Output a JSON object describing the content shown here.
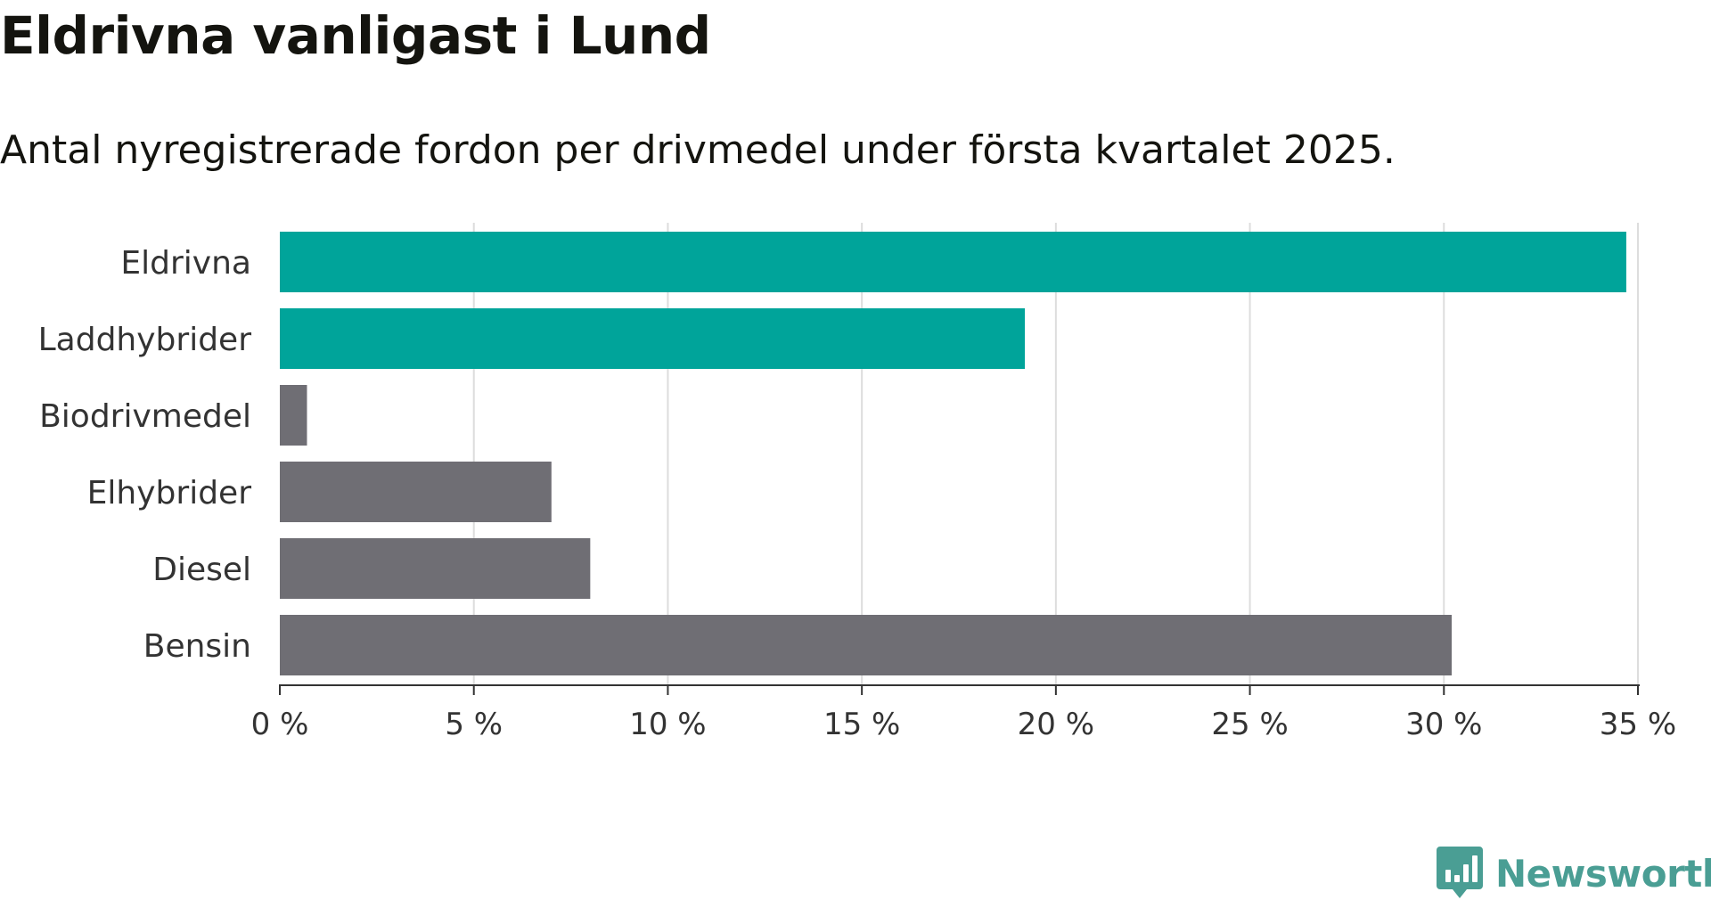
{
  "header": {
    "title": "Eldrivna vanligast i Lund",
    "subtitle": "Antal nyregistrerade fordon per drivmedel under första kvartalet 2025."
  },
  "brand": {
    "name": "Newsworthy",
    "color": "#4a9e94",
    "icon": "chat-bar-chart-icon"
  },
  "chart_data": {
    "type": "bar",
    "orientation": "horizontal",
    "categories": [
      "Eldrivna",
      "Laddhybrider",
      "Biodrivmedel",
      "Elhybrider",
      "Diesel",
      "Bensin"
    ],
    "values": [
      34.7,
      19.2,
      0.7,
      7.0,
      8.0,
      30.2
    ],
    "colors": [
      "#00a49a",
      "#00a49a",
      "#6f6e74",
      "#6f6e74",
      "#6f6e74",
      "#6f6e74"
    ],
    "xlim": [
      0,
      35
    ],
    "xticks": [
      0,
      5,
      10,
      15,
      20,
      25,
      30,
      35
    ],
    "xtick_labels": [
      "0 %",
      "5 %",
      "10 %",
      "15 %",
      "20 %",
      "25 %",
      "30 %",
      "35 %"
    ],
    "grid": "vertical",
    "xlabel": "",
    "ylabel": ""
  }
}
